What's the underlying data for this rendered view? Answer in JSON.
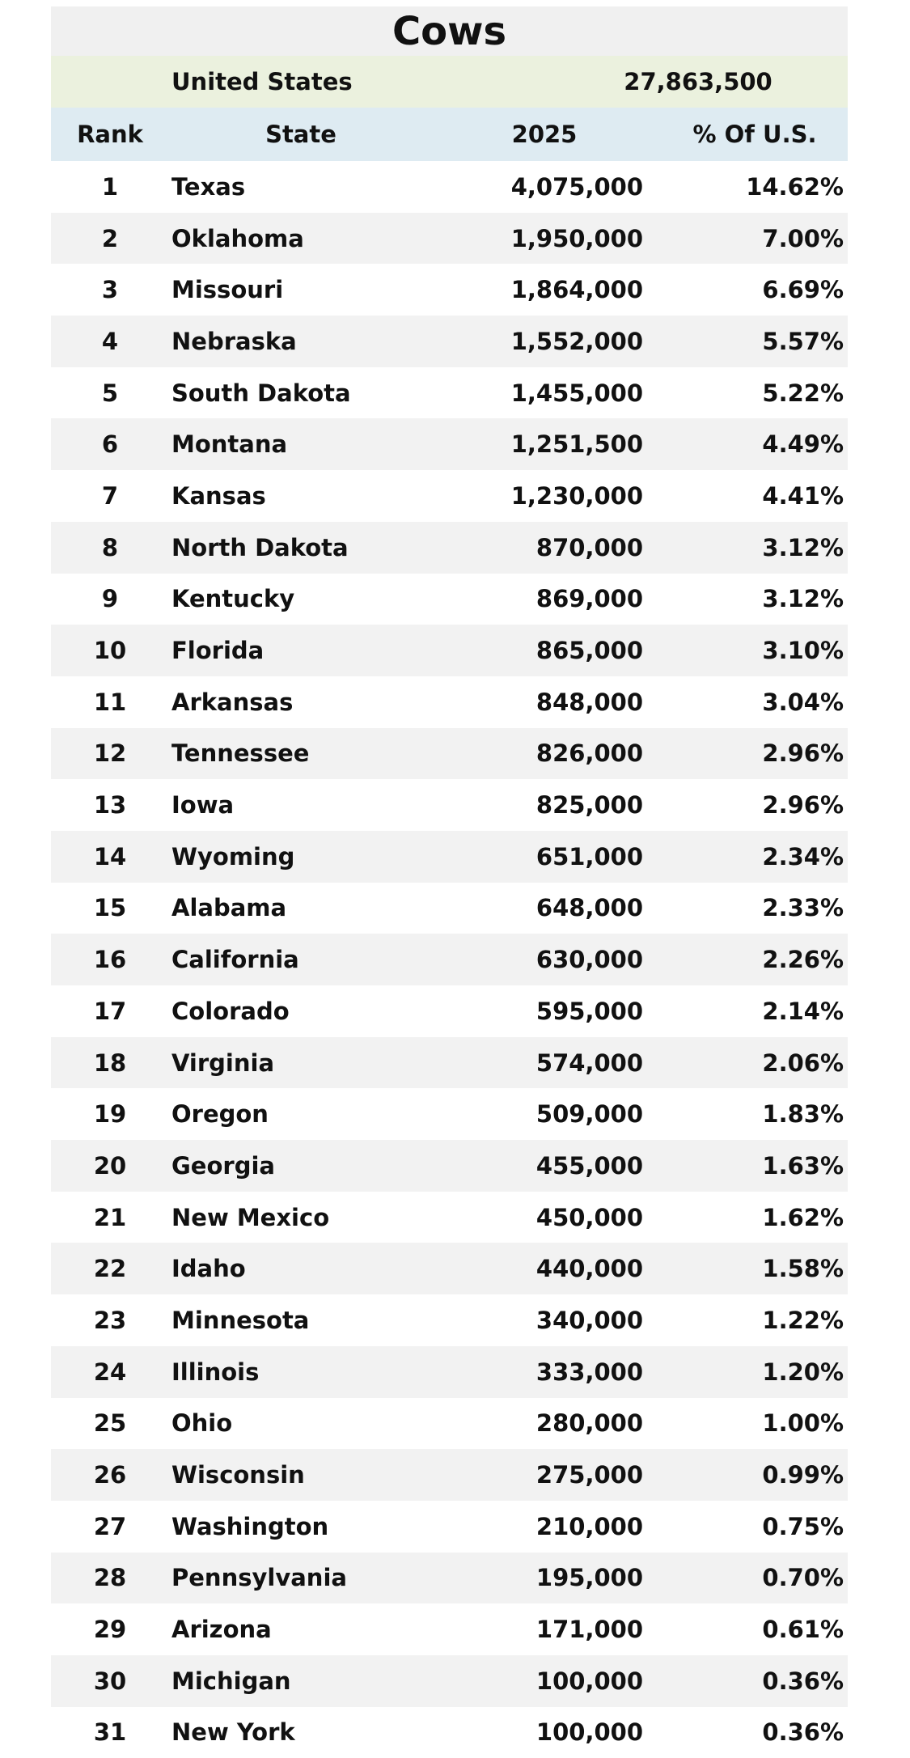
{
  "title": "Cows",
  "summary": {
    "label": "United States",
    "value": "27,863,500"
  },
  "headers": {
    "rank": "Rank",
    "state": "State",
    "year": "2025",
    "percent": "% Of U.S."
  },
  "rows": [
    {
      "rank": "1",
      "state": "Texas",
      "value": "4,075,000",
      "percent": "14.62%"
    },
    {
      "rank": "2",
      "state": "Oklahoma",
      "value": "1,950,000",
      "percent": "7.00%"
    },
    {
      "rank": "3",
      "state": "Missouri",
      "value": "1,864,000",
      "percent": "6.69%"
    },
    {
      "rank": "4",
      "state": "Nebraska",
      "value": "1,552,000",
      "percent": "5.57%"
    },
    {
      "rank": "5",
      "state": "South Dakota",
      "value": "1,455,000",
      "percent": "5.22%"
    },
    {
      "rank": "6",
      "state": "Montana",
      "value": "1,251,500",
      "percent": "4.49%"
    },
    {
      "rank": "7",
      "state": "Kansas",
      "value": "1,230,000",
      "percent": "4.41%"
    },
    {
      "rank": "8",
      "state": "North Dakota",
      "value": "870,000",
      "percent": "3.12%"
    },
    {
      "rank": "9",
      "state": "Kentucky",
      "value": "869,000",
      "percent": "3.12%"
    },
    {
      "rank": "10",
      "state": "Florida",
      "value": "865,000",
      "percent": "3.10%"
    },
    {
      "rank": "11",
      "state": "Arkansas",
      "value": "848,000",
      "percent": "3.04%"
    },
    {
      "rank": "12",
      "state": "Tennessee",
      "value": "826,000",
      "percent": "2.96%"
    },
    {
      "rank": "13",
      "state": "Iowa",
      "value": "825,000",
      "percent": "2.96%"
    },
    {
      "rank": "14",
      "state": "Wyoming",
      "value": "651,000",
      "percent": "2.34%"
    },
    {
      "rank": "15",
      "state": "Alabama",
      "value": "648,000",
      "percent": "2.33%"
    },
    {
      "rank": "16",
      "state": "California",
      "value": "630,000",
      "percent": "2.26%"
    },
    {
      "rank": "17",
      "state": "Colorado",
      "value": "595,000",
      "percent": "2.14%"
    },
    {
      "rank": "18",
      "state": "Virginia",
      "value": "574,000",
      "percent": "2.06%"
    },
    {
      "rank": "19",
      "state": "Oregon",
      "value": "509,000",
      "percent": "1.83%"
    },
    {
      "rank": "20",
      "state": "Georgia",
      "value": "455,000",
      "percent": "1.63%"
    },
    {
      "rank": "21",
      "state": "New Mexico",
      "value": "450,000",
      "percent": "1.62%"
    },
    {
      "rank": "22",
      "state": "Idaho",
      "value": "440,000",
      "percent": "1.58%"
    },
    {
      "rank": "23",
      "state": "Minnesota",
      "value": "340,000",
      "percent": "1.22%"
    },
    {
      "rank": "24",
      "state": "Illinois",
      "value": "333,000",
      "percent": "1.20%"
    },
    {
      "rank": "25",
      "state": "Ohio",
      "value": "280,000",
      "percent": "1.00%"
    },
    {
      "rank": "26",
      "state": "Wisconsin",
      "value": "275,000",
      "percent": "0.99%"
    },
    {
      "rank": "27",
      "state": "Washington",
      "value": "210,000",
      "percent": "0.75%"
    },
    {
      "rank": "28",
      "state": "Pennsylvania",
      "value": "195,000",
      "percent": "0.70%"
    },
    {
      "rank": "29",
      "state": "Arizona",
      "value": "171,000",
      "percent": "0.61%"
    },
    {
      "rank": "30",
      "state": "Michigan",
      "value": "100,000",
      "percent": "0.36%"
    },
    {
      "rank": "31",
      "state": "New York",
      "value": "100,000",
      "percent": "0.36%"
    }
  ]
}
